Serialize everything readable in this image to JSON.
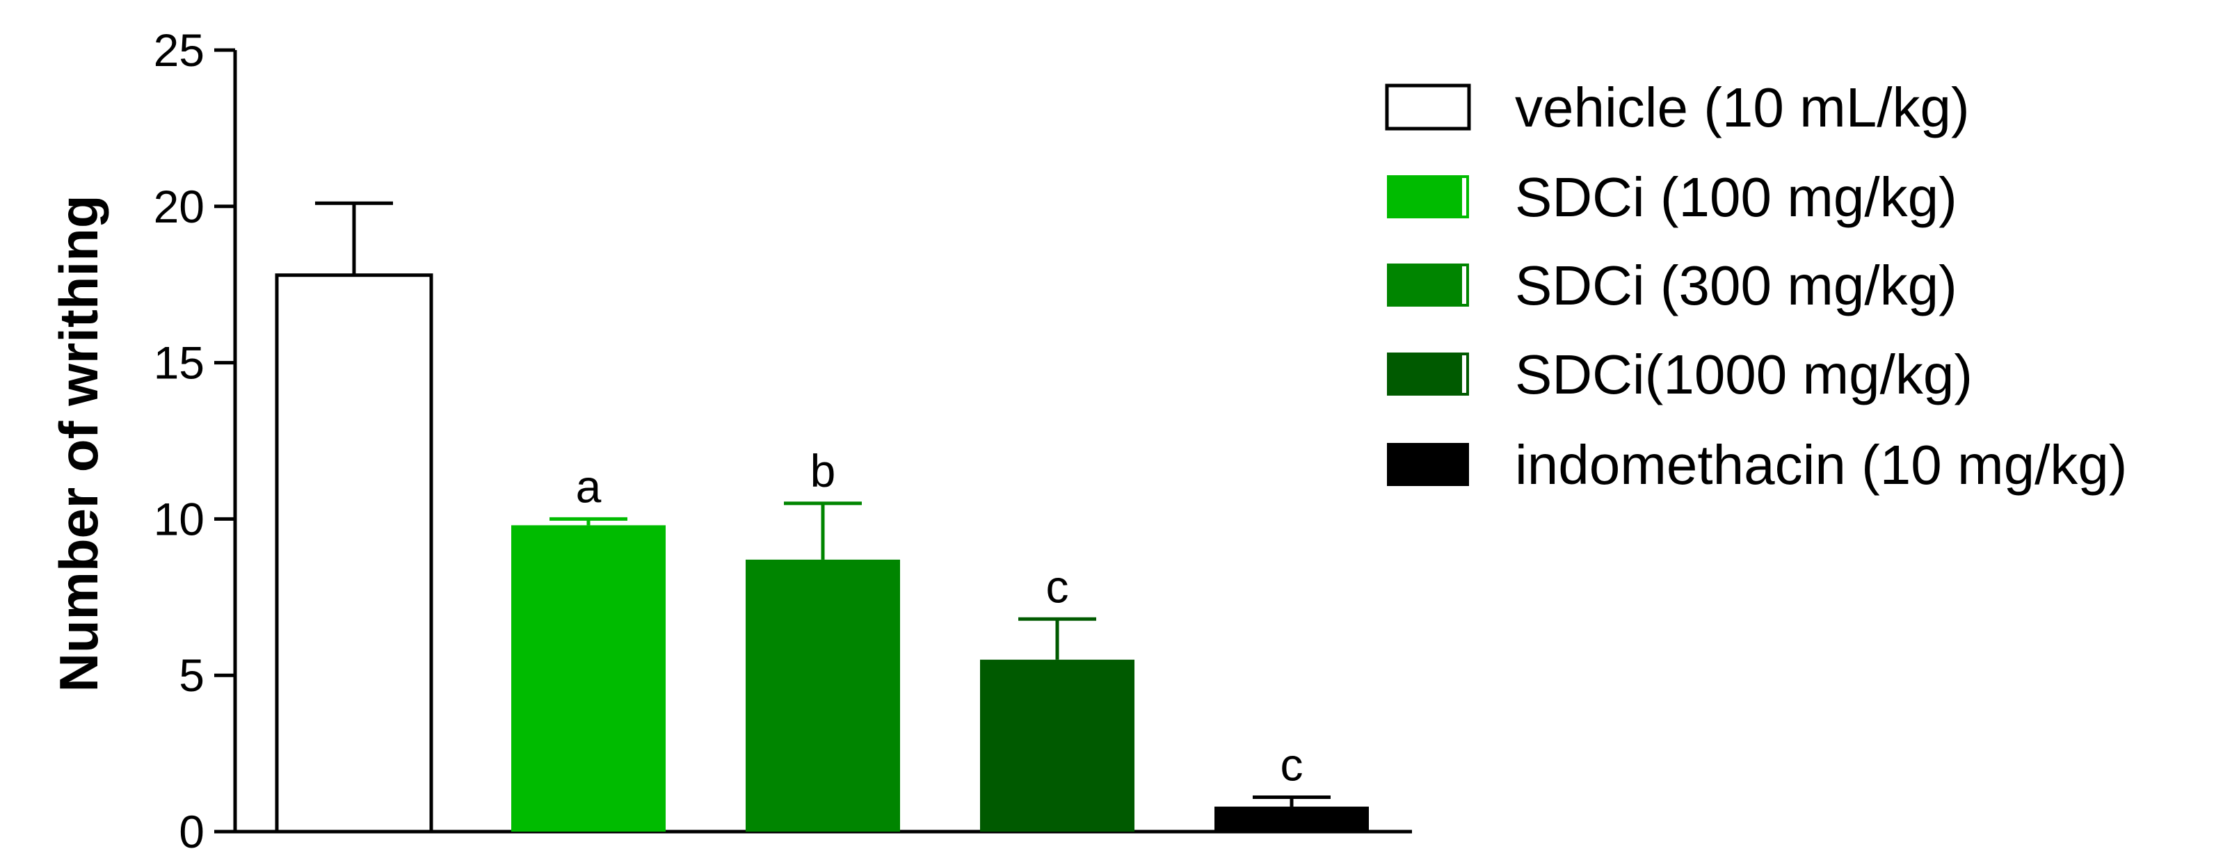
{
  "chart_data": {
    "type": "bar",
    "title": "",
    "xlabel": "",
    "ylabel": "Number of writhing",
    "ylim": [
      0,
      25
    ],
    "yticks": [
      "0",
      "5",
      "10",
      "15",
      "20",
      "25"
    ],
    "grid": false,
    "legend_position": "right",
    "series": [
      {
        "name": "vehicle (10 mL/kg)",
        "value": 17.8,
        "error": 2.3,
        "sig": "",
        "color": "#ffffff"
      },
      {
        "name": "SDCi (100 mg/kg)",
        "value": 9.8,
        "error": 0.2,
        "sig": "a",
        "color": "#00bb00"
      },
      {
        "name": "SDCi (300 mg/kg)",
        "value": 8.7,
        "error": 1.8,
        "sig": "b",
        "color": "#008500"
      },
      {
        "name": "SDCi(1000 mg/kg)",
        "value": 5.5,
        "error": 1.3,
        "sig": "c",
        "color": "#005a00"
      },
      {
        "name": "indomethacin (10 mg/kg)",
        "value": 0.8,
        "error": 0.3,
        "sig": "c",
        "color": "#000000"
      }
    ]
  }
}
